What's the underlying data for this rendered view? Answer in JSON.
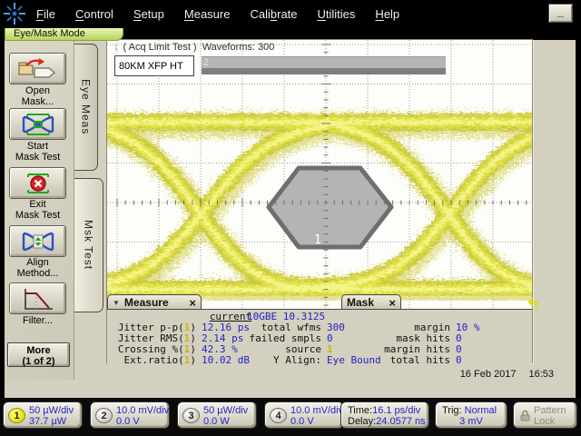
{
  "window": {
    "minimize_label": "_"
  },
  "menu": {
    "items": [
      {
        "pre": "",
        "u": "F",
        "post": "ile"
      },
      {
        "pre": "",
        "u": "C",
        "post": "ontrol"
      },
      {
        "pre": "",
        "u": "S",
        "post": "etup"
      },
      {
        "pre": "",
        "u": "M",
        "post": "easure"
      },
      {
        "pre": "Cali",
        "u": "b",
        "post": "rate"
      },
      {
        "pre": "",
        "u": "U",
        "post": "tilities"
      },
      {
        "pre": "",
        "u": "H",
        "post": "elp"
      }
    ]
  },
  "mode_label": "Eye/Mask Mode",
  "sidebar": {
    "buttons": [
      {
        "icon": "open-mask-icon",
        "line1": "Open",
        "line2": "Mask..."
      },
      {
        "icon": "start-mask-test-icon",
        "line1": "Start",
        "line2": "Mask Test"
      },
      {
        "icon": "exit-mask-test-icon",
        "line1": "Exit",
        "line2": "Mask Test"
      },
      {
        "icon": "align-method-icon",
        "line1": "Align",
        "line2": "Method..."
      },
      {
        "icon": "filter-icon",
        "line1": "Filter...",
        "line2": ""
      }
    ],
    "more": {
      "line1": "More",
      "line2": "(1 of 2)"
    }
  },
  "tabs": {
    "eye_meas": "Eye Meas",
    "mask_test": "Msk Test"
  },
  "display": {
    "acq_arrow": "↓",
    "acq_status": "( Acq Limit Test )  Waveforms: 300",
    "mask_title": "80KM XFP HT",
    "progress_label": "2",
    "mask_region_label": "1"
  },
  "measure_panel": {
    "title": "Measure",
    "collapse_icon": "▼",
    "close_icon": "×",
    "col_header": "current",
    "rows": [
      {
        "label": "Jitter p-p(",
        "chan": "1",
        "end": ")",
        "value": "12.16 ps"
      },
      {
        "label": "Jitter RMS(",
        "chan": "1",
        "end": ")",
        "value": "2.14 ps"
      },
      {
        "label": "Crossing %(",
        "chan": "1",
        "end": ")",
        "value": "42.3 %"
      },
      {
        "label": "Ext.ratio(",
        "chan": "1",
        "end": ")",
        "value": "10.02 dB"
      }
    ]
  },
  "mask_panel": {
    "title": "Mask",
    "close_icon": "×",
    "standard": "10GBE 10.3125",
    "info_rows": [
      {
        "label": "total wfms",
        "value": "300"
      },
      {
        "label": "failed smpls",
        "value": "0"
      },
      {
        "label": "source",
        "value": "1"
      },
      {
        "label": "Y Align:",
        "value": "Eye Bound"
      }
    ],
    "stat_rows": [
      {
        "label": "margin",
        "value": "10 %"
      },
      {
        "label": "mask hits",
        "value": "0"
      },
      {
        "label": "margin hits",
        "value": "0"
      },
      {
        "label": "total hits",
        "value": "0"
      }
    ]
  },
  "datetime": {
    "date": "16 Feb 2017",
    "time": "16:53"
  },
  "bottom_bar": {
    "channels": [
      {
        "num": "1",
        "line1": "50 µW/div",
        "line2": "37.7 µW"
      },
      {
        "num": "2",
        "line1": "10.0 mV/div",
        "line2": "0.0 V"
      },
      {
        "num": "3",
        "line1": "50 µW/div",
        "line2": "0.0 W"
      },
      {
        "num": "4",
        "line1": "10.0 mV/div",
        "line2": "0.0 V"
      }
    ],
    "timebase": {
      "label1": "Time:",
      "value1": "16.1 ps/div",
      "label2": "Delay:",
      "value2": "24.0577 ns"
    },
    "trigger": {
      "label": "Trig:",
      "value1": "Normal",
      "value2": "3 mV"
    },
    "pattern_lock": {
      "line1": "Pattern",
      "line2": "Lock"
    }
  },
  "colors": {
    "value_blue": "#2222cc",
    "channel1_yellow": "#e0e000",
    "eye_yellow": "#dede46",
    "mask_gray": "#b4b4b4",
    "mode_green": "#b3d35c",
    "panel_beige": "#d4d0bf"
  }
}
